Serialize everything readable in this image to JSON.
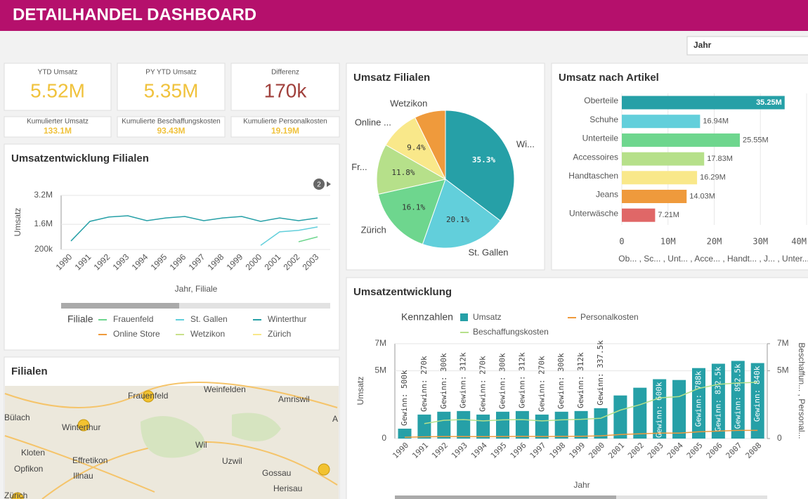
{
  "header": {
    "title": "DETAILHANDEL DASHBOARD"
  },
  "filter": {
    "label": "Jahr"
  },
  "kpis": [
    {
      "label": "YTD Umsatz",
      "value": "5.52M"
    },
    {
      "label": "PY YTD Umsatz",
      "value": "5.35M"
    },
    {
      "label": "Differenz",
      "value": "170k"
    }
  ],
  "kpis_small": [
    {
      "label": "Kumulierter Umsatz",
      "value": "133.1M"
    },
    {
      "label": "Kumulierte Beschaffungskosten",
      "value": "93.43M"
    },
    {
      "label": "Kumulierte Personalkosten",
      "value": "19.19M"
    }
  ],
  "chart_data": [
    {
      "type": "line",
      "title": "Umsatzentwicklung Filialen",
      "badge": "2",
      "y_label": "Umsatz",
      "x_label": "Jahr, Filiale",
      "legend_title": "Filiale",
      "categories": [
        "1990",
        "1991",
        "1992",
        "1993",
        "1994",
        "1995",
        "1996",
        "1997",
        "1998",
        "1999",
        "2000",
        "2001",
        "2002",
        "2003"
      ],
      "ylim": [
        200000,
        3200000
      ],
      "yticks": [
        {
          "value": 200000,
          "label": "200k"
        },
        {
          "value": 1600000,
          "label": "1.6M"
        },
        {
          "value": 3200000,
          "label": "3.2M"
        }
      ],
      "grid": true,
      "series": [
        {
          "name": "Frauenfeld",
          "color": "#6ed68e",
          "values": [
            null,
            null,
            null,
            null,
            null,
            null,
            null,
            null,
            null,
            null,
            null,
            null,
            630000,
            900000
          ]
        },
        {
          "name": "St. Gallen",
          "color": "#62cfdb",
          "values": [
            null,
            null,
            null,
            null,
            null,
            null,
            null,
            null,
            null,
            null,
            430000,
            1180000,
            1260000,
            1450000
          ]
        },
        {
          "name": "Winterthur",
          "color": "#26a0a7",
          "values": [
            670000,
            1760000,
            2000000,
            2070000,
            1800000,
            1950000,
            2030000,
            1800000,
            1950000,
            2030000,
            1760000,
            1950000,
            1800000,
            1950000
          ]
        },
        {
          "name": "Online Store",
          "color": "#ef9a3c"
        },
        {
          "name": "Wetzikon",
          "color": "#c9e08a"
        },
        {
          "name": "Zürich",
          "color": "#f9e88a"
        }
      ]
    },
    {
      "type": "pie",
      "title": "Umsatz Filialen",
      "categories": [
        "Wi...",
        "St. Gallen",
        "Zürich",
        "Fr...",
        "Online ...",
        "Wetzikon"
      ],
      "values": [
        35.3,
        20.1,
        16.1,
        11.8,
        9.4,
        7.3
      ],
      "value_labels": [
        "35.3%",
        "20.1%",
        "16.1%",
        "11.8%",
        "9.4%",
        null
      ],
      "colors": [
        "#26a0a7",
        "#62cfdb",
        "#6ed68e",
        "#b6e08a",
        "#f9e88a",
        "#ef9a3c"
      ]
    },
    {
      "type": "hbar",
      "title": "Umsatz nach Artikel",
      "categories": [
        "Oberteile",
        "Schuhe",
        "Unterteile",
        "Accessoires",
        "Handtaschen",
        "Jeans",
        "Unterwäsche"
      ],
      "values": [
        35250000,
        16940000,
        25550000,
        17830000,
        16290000,
        14030000,
        7210000
      ],
      "value_labels": [
        "35.25M",
        "16.94M",
        "25.55M",
        "17.83M",
        "16.29M",
        "14.03M",
        "7.21M"
      ],
      "colors": [
        "#26a0a7",
        "#62cfdb",
        "#6ed68e",
        "#b6e08a",
        "#f9e88a",
        "#ef9a3c",
        "#e06767"
      ],
      "xlim": [
        0,
        40000000
      ],
      "xticks": [
        0,
        {
          "value": 10000000,
          "label": "10M"
        },
        {
          "value": 20000000,
          "label": "20M"
        },
        {
          "value": 30000000,
          "label": "30M"
        },
        {
          "value": 40000000,
          "label": "40M"
        }
      ],
      "x_label": "Ob... , Sc... , Unt... , Acce... , Handt... , J... , Unter..."
    },
    {
      "type": "combo",
      "title": "Umsatzentwicklung",
      "legend_title": "Kennzahlen",
      "y_label": "Umsatz",
      "y2_label": "Beschaffun... , Personal...",
      "x_label": "Jahr",
      "categories": [
        "1990",
        "1991",
        "1992",
        "1993",
        "1994",
        "1995",
        "1996",
        "1997",
        "1998",
        "1999",
        "2000",
        "2001",
        "2002",
        "2003",
        "2004",
        "2005",
        "2006",
        "2007",
        "2008"
      ],
      "ylim": [
        0,
        7000000
      ],
      "yticks": [
        0,
        {
          "value": 5000000,
          "label": "5M"
        },
        {
          "value": 7000000,
          "label": "7M"
        }
      ],
      "y2lim": [
        0,
        7000000
      ],
      "y2ticks": [
        0,
        {
          "value": 5000000,
          "label": "5M"
        },
        {
          "value": 7000000,
          "label": "7M"
        }
      ],
      "bar_labels": [
        "Gewinn: 500k",
        "Gewinn: 270k",
        "Gewinn: 300k",
        "Gewinn: 312k",
        "Gewinn: 270k",
        "Gewinn: 300k",
        "Gewinn: 312k",
        "Gewinn: 270k",
        "Gewinn: 300k",
        "Gewinn: 312k",
        "Gewinn: 337.5k",
        null,
        null,
        "Gewinn: 600k",
        null,
        "Gewinn: 788k",
        "Gewinn: 832.5k",
        "Gewinn: 892.5k",
        "Gewinn: 840k"
      ],
      "series": [
        {
          "name": "Umsatz",
          "color": "#26a0a7",
          "values": [
            730000,
            1770000,
            1980000,
            2030000,
            1770000,
            1980000,
            2030000,
            1770000,
            1980000,
            2030000,
            2240000,
            3180000,
            3750000,
            4380000,
            4320000,
            5200000,
            5520000,
            5730000,
            5570000
          ]
        },
        {
          "name": "Beschaffungskosten",
          "color": "#b6e08a",
          "axis": "y2",
          "values": [
            null,
            1100000,
            1350000,
            1400000,
            1300000,
            1380000,
            1400000,
            1300000,
            1380000,
            1420000,
            1500000,
            2100000,
            2500000,
            3000000,
            3100000,
            3700000,
            4000000,
            4100000,
            4150000
          ]
        },
        {
          "name": "Personalkosten",
          "color": "#ef9a3c",
          "axis": "y2",
          "values": [
            100000,
            130000,
            150000,
            150000,
            140000,
            150000,
            160000,
            150000,
            160000,
            170000,
            200000,
            300000,
            350000,
            400000,
            400000,
            500000,
            550000,
            600000,
            600000
          ]
        }
      ]
    }
  ],
  "map": {
    "title": "Filialen",
    "places": [
      "Frauenfeld",
      "Weinfelden",
      "Amriswil",
      "Bülach",
      "Winterthur",
      "Wil",
      "Kloten",
      "Opfikon",
      "Effretikon",
      "Uzwil",
      "Illnau",
      "Gossau",
      "Herisau",
      "Zürich",
      "A"
    ]
  }
}
